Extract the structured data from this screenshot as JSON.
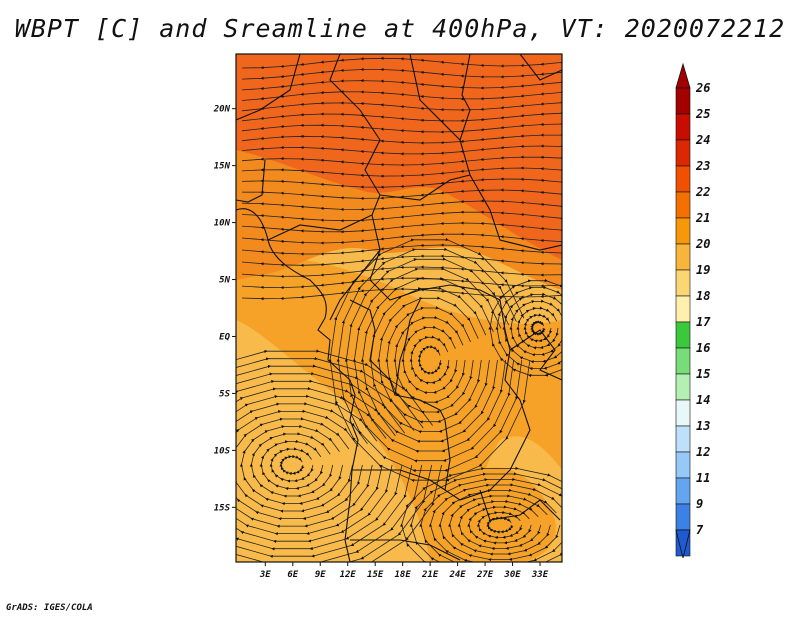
{
  "title": "WBPT [C] and Sreamline at 400hPa, VT: 2020072212",
  "footer": "GrADS: IGES/COLA",
  "map": {
    "lat_labels": [
      "20N",
      "15N",
      "10N",
      "5N",
      "EQ",
      "5S",
      "10S",
      "15S"
    ],
    "lat_values": [
      20,
      15,
      10,
      5,
      0,
      -5,
      -10,
      -15
    ],
    "lon_labels": [
      "3E",
      "6E",
      "9E",
      "12E",
      "15E",
      "18E",
      "21E",
      "24E",
      "27E",
      "30E",
      "33E"
    ],
    "lon_values": [
      3,
      6,
      9,
      12,
      15,
      18,
      21,
      24,
      27,
      30,
      33
    ]
  },
  "colorbar": {
    "labels": [
      "26",
      "25",
      "24",
      "23",
      "22",
      "21",
      "20",
      "19",
      "18",
      "17",
      "16",
      "15",
      "14",
      "13",
      "12",
      "11",
      "9",
      "7"
    ],
    "colors": [
      "#a50000",
      "#c80c00",
      "#dc2800",
      "#f05000",
      "#f37000",
      "#f7980a",
      "#f8b53c",
      "#fbd674",
      "#fff0ad",
      "#3cc83c",
      "#78dc78",
      "#b4f0b4",
      "#e8f8f8",
      "#bfe0fb",
      "#96c8f8",
      "#64a5f0",
      "#3c82e6",
      "#1e5ad2"
    ]
  },
  "field_colors": {
    "dark": "#f0661c",
    "mid": "#f38a1e",
    "orange": "#f6a228",
    "light": "#f8ba4a"
  }
}
